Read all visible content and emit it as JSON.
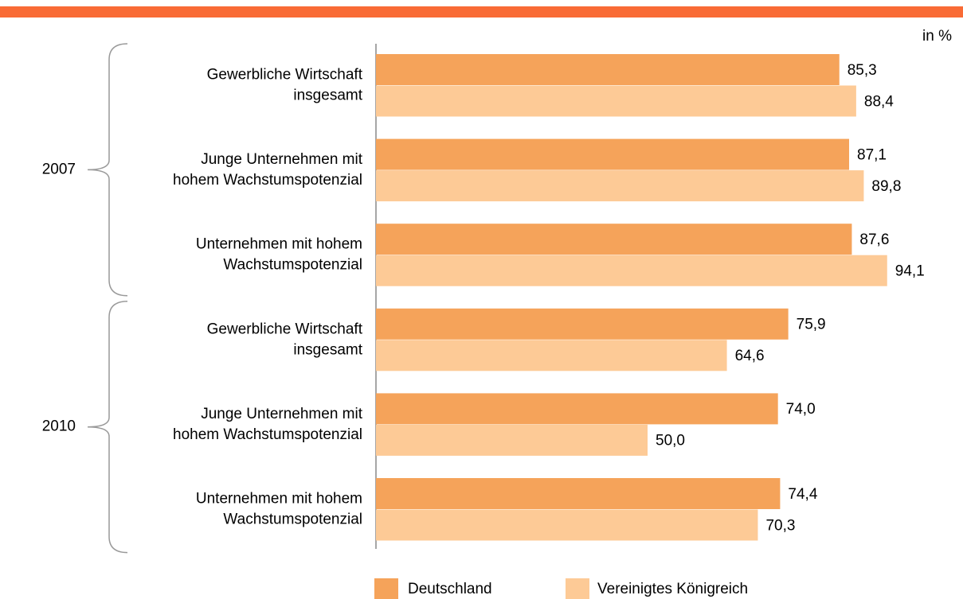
{
  "chart_data": {
    "type": "barh",
    "unit_label": "in %",
    "groups": [
      "2007",
      "2010"
    ],
    "categories": [
      [
        "Gewerbliche Wirtschaft",
        "insgesamt"
      ],
      [
        "Junge Unternehmen mit",
        "hohem Wachstumspotenzial"
      ],
      [
        "Unternehmen mit hohem",
        "Wachstumspotenzial"
      ],
      [
        "Gewerbliche Wirtschaft",
        "insgesamt"
      ],
      [
        "Junge Unternehmen mit",
        "hohem Wachstumspotenzial"
      ],
      [
        "Unternehmen mit hohem",
        "Wachstumspotenzial"
      ]
    ],
    "series": [
      {
        "name": "Deutschland",
        "color": "#f5a35a",
        "values": [
          85.3,
          87.1,
          87.6,
          75.9,
          74.0,
          74.4
        ],
        "value_labels": [
          "85,3",
          "87,1",
          "87,6",
          "75,9",
          "74,0",
          "74,4"
        ]
      },
      {
        "name": "Vereinigtes Königreich",
        "color": "#fdca96",
        "values": [
          88.4,
          89.8,
          94.1,
          64.6,
          50.0,
          70.3
        ],
        "value_labels": [
          "88,4",
          "89,8",
          "94,1",
          "64,6",
          "50,0",
          "70,3"
        ]
      }
    ],
    "xlim": [
      0,
      100
    ]
  }
}
